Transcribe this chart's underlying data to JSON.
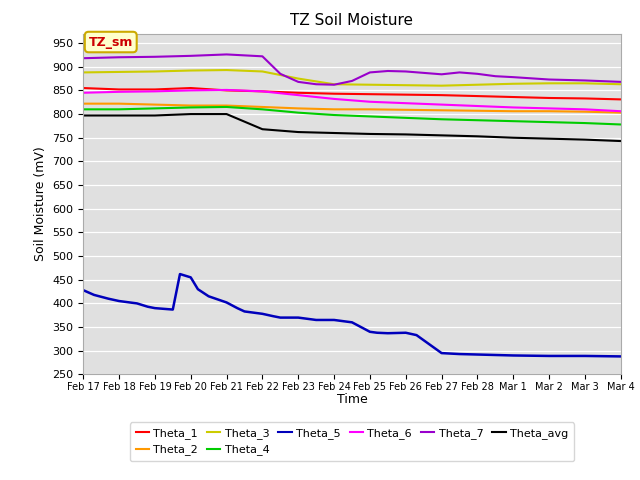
{
  "title": "TZ Soil Moisture",
  "ylabel": "Soil Moisture (mV)",
  "xlabel": "Time",
  "ylim": [
    250,
    970
  ],
  "yticks": [
    250,
    300,
    350,
    400,
    450,
    500,
    550,
    600,
    650,
    700,
    750,
    800,
    850,
    900,
    950
  ],
  "bg_color": "#e0e0e0",
  "fig_color": "#ffffff",
  "label_box_text": "TZ_sm",
  "label_box_bg": "#ffffcc",
  "label_box_edge": "#ccaa00",
  "label_box_text_color": "#cc0000",
  "series": {
    "Theta_1": {
      "color": "#ff0000",
      "points": [
        [
          0,
          855
        ],
        [
          1,
          852
        ],
        [
          2,
          852
        ],
        [
          3,
          855
        ],
        [
          4,
          850
        ],
        [
          5,
          848
        ],
        [
          6,
          845
        ],
        [
          7,
          843
        ],
        [
          8,
          842
        ],
        [
          9,
          841
        ],
        [
          10,
          840
        ],
        [
          11,
          838
        ],
        [
          12,
          836
        ],
        [
          13,
          834
        ],
        [
          14,
          833
        ],
        [
          15,
          831
        ]
      ],
      "lw": 1.5
    },
    "Theta_2": {
      "color": "#ff9900",
      "points": [
        [
          0,
          822
        ],
        [
          1,
          822
        ],
        [
          2,
          820
        ],
        [
          3,
          818
        ],
        [
          4,
          818
        ],
        [
          5,
          815
        ],
        [
          6,
          812
        ],
        [
          7,
          810
        ],
        [
          8,
          810
        ],
        [
          9,
          809
        ],
        [
          10,
          808
        ],
        [
          11,
          807
        ],
        [
          12,
          806
        ],
        [
          13,
          806
        ],
        [
          14,
          805
        ],
        [
          15,
          803
        ]
      ],
      "lw": 1.5
    },
    "Theta_3": {
      "color": "#cccc00",
      "points": [
        [
          0,
          888
        ],
        [
          1,
          889
        ],
        [
          2,
          890
        ],
        [
          3,
          892
        ],
        [
          4,
          893
        ],
        [
          5,
          890
        ],
        [
          6,
          875
        ],
        [
          7,
          863
        ],
        [
          8,
          862
        ],
        [
          9,
          861
        ],
        [
          10,
          860
        ],
        [
          11,
          862
        ],
        [
          12,
          864
        ],
        [
          13,
          865
        ],
        [
          14,
          865
        ],
        [
          15,
          863
        ]
      ],
      "lw": 1.5
    },
    "Theta_4": {
      "color": "#00cc00",
      "points": [
        [
          0,
          810
        ],
        [
          1,
          810
        ],
        [
          2,
          812
        ],
        [
          3,
          814
        ],
        [
          4,
          815
        ],
        [
          5,
          810
        ],
        [
          6,
          803
        ],
        [
          7,
          798
        ],
        [
          8,
          795
        ],
        [
          9,
          792
        ],
        [
          10,
          789
        ],
        [
          11,
          787
        ],
        [
          12,
          785
        ],
        [
          13,
          783
        ],
        [
          14,
          781
        ],
        [
          15,
          778
        ]
      ],
      "lw": 1.5
    },
    "Theta_5": {
      "color": "#0000bb",
      "points": [
        [
          0,
          428
        ],
        [
          0.3,
          418
        ],
        [
          0.7,
          410
        ],
        [
          1,
          405
        ],
        [
          1.5,
          400
        ],
        [
          1.8,
          393
        ],
        [
          2.0,
          390
        ],
        [
          2.5,
          387
        ],
        [
          2.7,
          462
        ],
        [
          3.0,
          455
        ],
        [
          3.2,
          430
        ],
        [
          3.5,
          415
        ],
        [
          4.0,
          402
        ],
        [
          4.3,
          390
        ],
        [
          4.5,
          383
        ],
        [
          5.0,
          378
        ],
        [
          5.3,
          373
        ],
        [
          5.5,
          370
        ],
        [
          6.0,
          370
        ],
        [
          6.5,
          365
        ],
        [
          7.0,
          365
        ],
        [
          7.5,
          360
        ],
        [
          8.0,
          340
        ],
        [
          8.2,
          338
        ],
        [
          8.5,
          337
        ],
        [
          9.0,
          338
        ],
        [
          9.3,
          333
        ],
        [
          10.0,
          295
        ],
        [
          10.5,
          293
        ],
        [
          11.0,
          292
        ],
        [
          12.0,
          290
        ],
        [
          13.0,
          289
        ],
        [
          14.0,
          289
        ],
        [
          15.0,
          288
        ]
      ],
      "lw": 1.8
    },
    "Theta_6": {
      "color": "#ff00ff",
      "points": [
        [
          0,
          845
        ],
        [
          1,
          847
        ],
        [
          2,
          848
        ],
        [
          3,
          850
        ],
        [
          4,
          851
        ],
        [
          5,
          848
        ],
        [
          6,
          840
        ],
        [
          7,
          832
        ],
        [
          8,
          826
        ],
        [
          9,
          823
        ],
        [
          10,
          820
        ],
        [
          11,
          817
        ],
        [
          12,
          814
        ],
        [
          13,
          812
        ],
        [
          14,
          810
        ],
        [
          15,
          806
        ]
      ],
      "lw": 1.5
    },
    "Theta_7": {
      "color": "#9900cc",
      "points": [
        [
          0,
          918
        ],
        [
          1,
          920
        ],
        [
          2,
          921
        ],
        [
          3,
          923
        ],
        [
          4,
          926
        ],
        [
          5,
          922
        ],
        [
          5.5,
          885
        ],
        [
          6,
          868
        ],
        [
          6.5,
          863
        ],
        [
          7,
          862
        ],
        [
          7.5,
          870
        ],
        [
          8,
          888
        ],
        [
          8.5,
          891
        ],
        [
          9,
          890
        ],
        [
          9.5,
          887
        ],
        [
          10,
          884
        ],
        [
          10.5,
          888
        ],
        [
          11,
          885
        ],
        [
          11.5,
          880
        ],
        [
          12,
          878
        ],
        [
          13,
          873
        ],
        [
          14,
          871
        ],
        [
          15,
          868
        ]
      ],
      "lw": 1.5
    },
    "Theta_avg": {
      "color": "#000000",
      "points": [
        [
          0,
          797
        ],
        [
          1,
          797
        ],
        [
          2,
          797
        ],
        [
          3,
          800
        ],
        [
          4,
          800
        ],
        [
          5,
          768
        ],
        [
          6,
          762
        ],
        [
          7,
          760
        ],
        [
          8,
          758
        ],
        [
          9,
          757
        ],
        [
          10,
          755
        ],
        [
          11,
          753
        ],
        [
          12,
          750
        ],
        [
          13,
          748
        ],
        [
          14,
          746
        ],
        [
          15,
          743
        ]
      ],
      "lw": 1.5
    }
  },
  "xtick_labels": [
    "Feb 17",
    "Feb 18",
    "Feb 19",
    "Feb 20",
    "Feb 21",
    "Feb 22",
    "Feb 23",
    "Feb 24",
    "Feb 25",
    "Feb 26",
    "Feb 27",
    "Feb 28",
    "Mar 1",
    "Mar 2",
    "Mar 3",
    "Mar 4"
  ],
  "xtick_positions": [
    0,
    1,
    2,
    3,
    4,
    5,
    6,
    7,
    8,
    9,
    10,
    11,
    12,
    13,
    14,
    15
  ],
  "legend_order": [
    "Theta_1",
    "Theta_2",
    "Theta_3",
    "Theta_4",
    "Theta_5",
    "Theta_6",
    "Theta_7",
    "Theta_avg"
  ]
}
